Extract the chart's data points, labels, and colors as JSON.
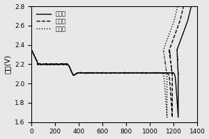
{
  "ylabel": "电压(V)",
  "xlim": [
    0,
    1400
  ],
  "ylim": [
    1.6,
    2.8
  ],
  "xticks": [
    0,
    200,
    400,
    600,
    800,
    1000,
    1200,
    1400
  ],
  "yticks": [
    1.6,
    1.8,
    2.0,
    2.2,
    2.4,
    2.6,
    2.8
  ],
  "legend": [
    "第一周",
    "第二周",
    "第三周"
  ],
  "line_styles": [
    "-",
    "--",
    ":"
  ],
  "line_color": "black",
  "line_width": 1.0,
  "bg_color": "#e8e8e8"
}
